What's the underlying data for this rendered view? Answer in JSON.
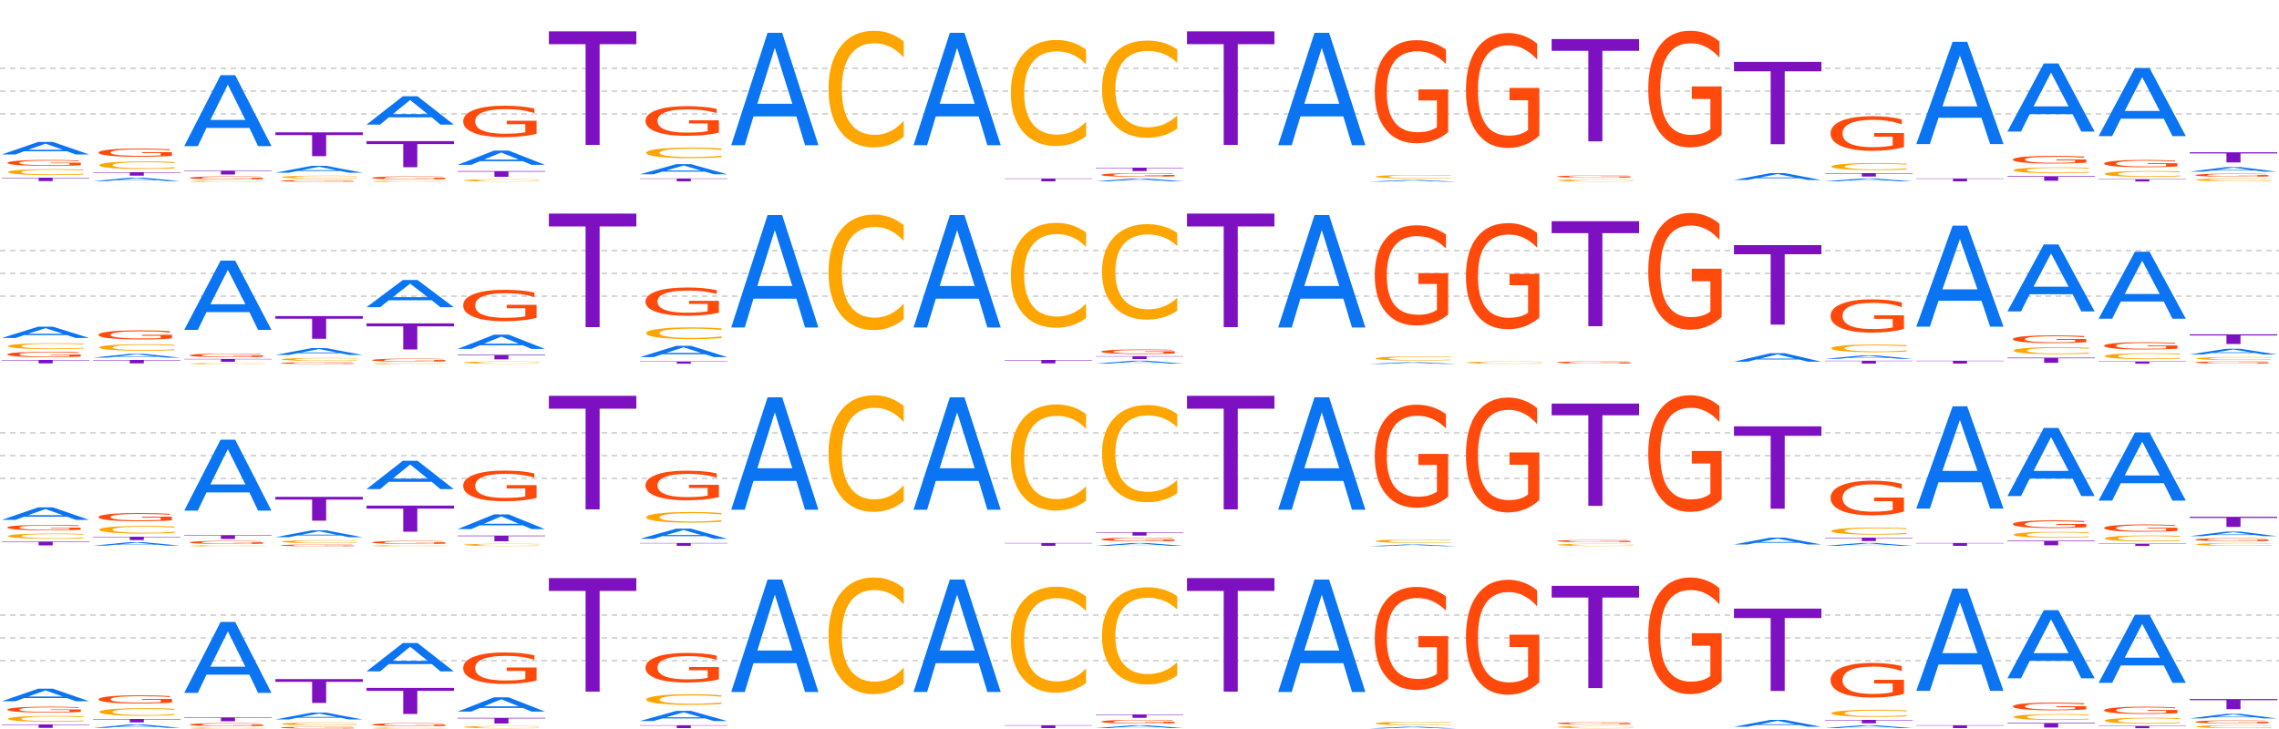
{
  "chart_data": {
    "type": "sequence-logo",
    "alphabet": [
      "A",
      "C",
      "G",
      "T"
    ],
    "colors": {
      "A": "#0a74f2",
      "C": "#ffa500",
      "G": "#ff4a0c",
      "T": "#7d11c1"
    },
    "grid": true,
    "logos": [
      {
        "positions": [
          {
            "A": 0.22,
            "C": 0.1,
            "G": 0.1,
            "T": 0.06
          },
          {
            "A": 0.06,
            "C": 0.13,
            "G": 0.15,
            "T": 0.06
          },
          {
            "A": 1.25,
            "C": 0.02,
            "G": 0.05,
            "T": 0.07
          },
          {
            "A": 0.12,
            "C": 0.05,
            "G": 0.03,
            "T": 0.42
          },
          {
            "A": 0.5,
            "C": 0.02,
            "G": 0.05,
            "T": 0.46
          },
          {
            "A": 0.25,
            "C": 0.04,
            "G": 0.53,
            "T": 0.1
          },
          {
            "A": 0.0,
            "C": 0.0,
            "G": 0.0,
            "T": 2.0
          },
          {
            "A": 0.18,
            "C": 0.18,
            "G": 0.5,
            "T": 0.05
          },
          {
            "A": 1.98,
            "C": 0.0,
            "G": 0.0,
            "T": 0.0
          },
          {
            "A": 0.0,
            "C": 1.98,
            "G": 0.0,
            "T": 0.0
          },
          {
            "A": 1.98,
            "C": 0.0,
            "G": 0.0,
            "T": 0.0
          },
          {
            "A": 0.0,
            "C": 1.8,
            "G": 0.0,
            "T": 0.05
          },
          {
            "A": 0.05,
            "C": 1.65,
            "G": 0.06,
            "T": 0.06
          },
          {
            "A": 0.0,
            "C": 0.0,
            "G": 0.0,
            "T": 2.0
          },
          {
            "A": 1.98,
            "C": 0.0,
            "G": 0.0,
            "T": 0.0
          },
          {
            "A": 0.03,
            "C": 0.06,
            "G": 1.75,
            "T": 0.0
          },
          {
            "A": 0.0,
            "C": 0.0,
            "G": 1.95,
            "T": 0.0
          },
          {
            "A": 0.0,
            "C": 0.04,
            "G": 0.04,
            "T": 1.8
          },
          {
            "A": 0.0,
            "C": 0.0,
            "G": 1.98,
            "T": 0.0
          },
          {
            "A": 0.12,
            "C": 0.0,
            "G": 0.0,
            "T": 1.45
          },
          {
            "A": 0.05,
            "C": 0.12,
            "G": 0.58,
            "T": 0.06
          },
          {
            "A": 1.8,
            "C": 0.0,
            "G": 0.0,
            "T": 0.05
          },
          {
            "A": 1.2,
            "C": 0.1,
            "G": 0.13,
            "T": 0.08
          },
          {
            "A": 1.2,
            "C": 0.1,
            "G": 0.12,
            "T": 0.04
          },
          {
            "A": 0.08,
            "C": 0.05,
            "G": 0.05,
            "T": 0.18
          }
        ]
      },
      {
        "positions": [
          {
            "A": 0.2,
            "C": 0.1,
            "G": 0.09,
            "T": 0.06
          },
          {
            "A": 0.07,
            "C": 0.11,
            "G": 0.16,
            "T": 0.06
          },
          {
            "A": 1.22,
            "C": 0.02,
            "G": 0.06,
            "T": 0.05
          },
          {
            "A": 0.12,
            "C": 0.05,
            "G": 0.03,
            "T": 0.4
          },
          {
            "A": 0.48,
            "C": 0.02,
            "G": 0.05,
            "T": 0.46
          },
          {
            "A": 0.25,
            "C": 0.04,
            "G": 0.53,
            "T": 0.08
          },
          {
            "A": 0.0,
            "C": 0.0,
            "G": 0.0,
            "T": 2.0
          },
          {
            "A": 0.2,
            "C": 0.2,
            "G": 0.48,
            "T": 0.04
          },
          {
            "A": 1.98,
            "C": 0.0,
            "G": 0.0,
            "T": 0.0
          },
          {
            "A": 0.0,
            "C": 1.96,
            "G": 0.0,
            "T": 0.0
          },
          {
            "A": 1.98,
            "C": 0.0,
            "G": 0.0,
            "T": 0.0
          },
          {
            "A": 0.0,
            "C": 1.78,
            "G": 0.0,
            "T": 0.06
          },
          {
            "A": 0.05,
            "C": 1.62,
            "G": 0.08,
            "T": 0.05
          },
          {
            "A": 0.0,
            "C": 0.0,
            "G": 0.0,
            "T": 2.0
          },
          {
            "A": 1.98,
            "C": 0.0,
            "G": 0.0,
            "T": 0.0
          },
          {
            "A": 0.03,
            "C": 0.07,
            "G": 1.7,
            "T": 0.0
          },
          {
            "A": 0.0,
            "C": 0.04,
            "G": 1.8,
            "T": 0.0
          },
          {
            "A": 0.0,
            "C": 0.0,
            "G": 0.04,
            "T": 1.85
          },
          {
            "A": 0.0,
            "C": 0.0,
            "G": 1.98,
            "T": 0.0
          },
          {
            "A": 0.15,
            "C": 0.0,
            "G": 0.0,
            "T": 1.4
          },
          {
            "A": 0.06,
            "C": 0.13,
            "G": 0.56,
            "T": 0.05
          },
          {
            "A": 1.78,
            "C": 0.0,
            "G": 0.0,
            "T": 0.05
          },
          {
            "A": 1.18,
            "C": 0.12,
            "G": 0.13,
            "T": 0.09
          },
          {
            "A": 1.18,
            "C": 0.1,
            "G": 0.12,
            "T": 0.04
          },
          {
            "A": 0.1,
            "C": 0.05,
            "G": 0.04,
            "T": 0.17
          }
        ]
      },
      {
        "positions": [
          {
            "A": 0.22,
            "C": 0.09,
            "G": 0.09,
            "T": 0.07
          },
          {
            "A": 0.06,
            "C": 0.13,
            "G": 0.14,
            "T": 0.06
          },
          {
            "A": 1.25,
            "C": 0.02,
            "G": 0.05,
            "T": 0.07
          },
          {
            "A": 0.12,
            "C": 0.05,
            "G": 0.03,
            "T": 0.42
          },
          {
            "A": 0.5,
            "C": 0.02,
            "G": 0.05,
            "T": 0.46
          },
          {
            "A": 0.26,
            "C": 0.04,
            "G": 0.52,
            "T": 0.1
          },
          {
            "A": 0.0,
            "C": 0.0,
            "G": 0.0,
            "T": 2.0
          },
          {
            "A": 0.18,
            "C": 0.18,
            "G": 0.5,
            "T": 0.05
          },
          {
            "A": 1.98,
            "C": 0.0,
            "G": 0.0,
            "T": 0.0
          },
          {
            "A": 0.0,
            "C": 1.98,
            "G": 0.0,
            "T": 0.0
          },
          {
            "A": 1.98,
            "C": 0.0,
            "G": 0.0,
            "T": 0.0
          },
          {
            "A": 0.0,
            "C": 1.8,
            "G": 0.0,
            "T": 0.05
          },
          {
            "A": 0.05,
            "C": 1.65,
            "G": 0.06,
            "T": 0.06
          },
          {
            "A": 0.0,
            "C": 0.0,
            "G": 0.0,
            "T": 2.0
          },
          {
            "A": 1.98,
            "C": 0.0,
            "G": 0.0,
            "T": 0.0
          },
          {
            "A": 0.03,
            "C": 0.06,
            "G": 1.75,
            "T": 0.0
          },
          {
            "A": 0.0,
            "C": 0.0,
            "G": 1.95,
            "T": 0.0
          },
          {
            "A": 0.0,
            "C": 0.04,
            "G": 0.04,
            "T": 1.8
          },
          {
            "A": 0.0,
            "C": 0.0,
            "G": 1.98,
            "T": 0.0
          },
          {
            "A": 0.12,
            "C": 0.0,
            "G": 0.0,
            "T": 1.45
          },
          {
            "A": 0.05,
            "C": 0.12,
            "G": 0.58,
            "T": 0.06
          },
          {
            "A": 1.8,
            "C": 0.0,
            "G": 0.0,
            "T": 0.05
          },
          {
            "A": 1.2,
            "C": 0.1,
            "G": 0.13,
            "T": 0.08
          },
          {
            "A": 1.2,
            "C": 0.1,
            "G": 0.12,
            "T": 0.04
          },
          {
            "A": 0.08,
            "C": 0.05,
            "G": 0.05,
            "T": 0.18
          }
        ]
      },
      {
        "positions": [
          {
            "A": 0.22,
            "C": 0.1,
            "G": 0.1,
            "T": 0.06
          },
          {
            "A": 0.06,
            "C": 0.13,
            "G": 0.15,
            "T": 0.06
          },
          {
            "A": 1.25,
            "C": 0.02,
            "G": 0.05,
            "T": 0.07
          },
          {
            "A": 0.12,
            "C": 0.05,
            "G": 0.03,
            "T": 0.42
          },
          {
            "A": 0.5,
            "C": 0.02,
            "G": 0.05,
            "T": 0.46
          },
          {
            "A": 0.25,
            "C": 0.04,
            "G": 0.53,
            "T": 0.1
          },
          {
            "A": 0.0,
            "C": 0.0,
            "G": 0.0,
            "T": 2.0
          },
          {
            "A": 0.18,
            "C": 0.18,
            "G": 0.5,
            "T": 0.05
          },
          {
            "A": 1.98,
            "C": 0.0,
            "G": 0.0,
            "T": 0.0
          },
          {
            "A": 0.0,
            "C": 1.98,
            "G": 0.0,
            "T": 0.0
          },
          {
            "A": 1.98,
            "C": 0.0,
            "G": 0.0,
            "T": 0.0
          },
          {
            "A": 0.0,
            "C": 1.8,
            "G": 0.0,
            "T": 0.05
          },
          {
            "A": 0.05,
            "C": 1.65,
            "G": 0.06,
            "T": 0.06
          },
          {
            "A": 0.0,
            "C": 0.0,
            "G": 0.0,
            "T": 2.0
          },
          {
            "A": 1.98,
            "C": 0.0,
            "G": 0.0,
            "T": 0.0
          },
          {
            "A": 0.03,
            "C": 0.06,
            "G": 1.75,
            "T": 0.0
          },
          {
            "A": 0.0,
            "C": 0.0,
            "G": 1.95,
            "T": 0.0
          },
          {
            "A": 0.0,
            "C": 0.04,
            "G": 0.04,
            "T": 1.8
          },
          {
            "A": 0.0,
            "C": 0.0,
            "G": 1.98,
            "T": 0.0
          },
          {
            "A": 0.12,
            "C": 0.0,
            "G": 0.0,
            "T": 1.45
          },
          {
            "A": 0.05,
            "C": 0.12,
            "G": 0.58,
            "T": 0.06
          },
          {
            "A": 1.8,
            "C": 0.0,
            "G": 0.0,
            "T": 0.05
          },
          {
            "A": 1.2,
            "C": 0.1,
            "G": 0.13,
            "T": 0.08
          },
          {
            "A": 1.2,
            "C": 0.1,
            "G": 0.12,
            "T": 0.04
          },
          {
            "A": 0.08,
            "C": 0.05,
            "G": 0.05,
            "T": 0.18
          }
        ]
      }
    ]
  }
}
